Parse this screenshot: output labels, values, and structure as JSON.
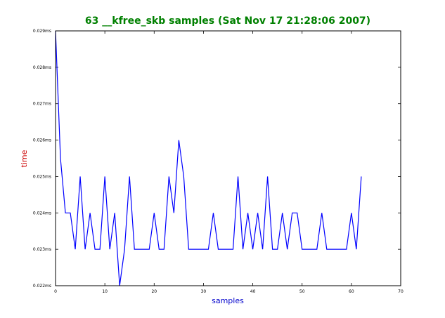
{
  "chart_data": {
    "type": "line",
    "title": "63 __kfree_skb samples (Sat Nov 17 21:28:06 2007)",
    "xlabel": "samples",
    "ylabel": "time",
    "xlim": [
      0,
      70
    ],
    "ylim": [
      0.022,
      0.029
    ],
    "xticks": [
      0,
      10,
      20,
      30,
      40,
      50,
      60,
      70
    ],
    "xtick_labels": [
      "0",
      "10",
      "20",
      "30",
      "40",
      "50",
      "60",
      "70"
    ],
    "yticks": [
      0.022,
      0.023,
      0.024,
      0.025,
      0.026,
      0.027,
      0.028,
      0.029
    ],
    "ytick_labels": [
      "0.022ms",
      "0.023ms",
      "0.024ms",
      "0.025ms",
      "0.026ms",
      "0.027ms",
      "0.028ms",
      "0.029ms"
    ],
    "grid": false,
    "colors": {
      "title": "#008000",
      "xlabel": "#0000cc",
      "ylabel": "#cc0000",
      "line": "#0000ff",
      "axes": "#000000"
    },
    "series": [
      {
        "x": [
          0,
          1,
          2,
          3,
          4,
          5,
          6,
          7,
          8,
          9,
          10,
          11,
          12,
          13,
          14,
          15,
          16,
          17,
          18,
          19,
          20,
          21,
          22,
          23,
          24,
          25,
          26,
          27,
          28,
          29,
          30,
          31,
          32,
          33,
          34,
          35,
          36,
          37,
          38,
          39,
          40,
          41,
          42,
          43,
          44,
          45,
          46,
          47,
          48,
          49,
          50,
          51,
          52,
          53,
          54,
          55,
          56,
          57,
          58,
          59,
          60,
          61,
          62
        ],
        "values": [
          0.029,
          0.0255,
          0.024,
          0.024,
          0.023,
          0.025,
          0.023,
          0.024,
          0.023,
          0.023,
          0.025,
          0.023,
          0.024,
          0.022,
          0.023,
          0.025,
          0.023,
          0.023,
          0.023,
          0.023,
          0.024,
          0.023,
          0.023,
          0.025,
          0.024,
          0.026,
          0.025,
          0.023,
          0.023,
          0.023,
          0.023,
          0.023,
          0.024,
          0.023,
          0.023,
          0.023,
          0.023,
          0.025,
          0.023,
          0.024,
          0.023,
          0.024,
          0.023,
          0.025,
          0.023,
          0.023,
          0.024,
          0.023,
          0.024,
          0.024,
          0.023,
          0.023,
          0.023,
          0.023,
          0.024,
          0.023,
          0.023,
          0.023,
          0.023,
          0.023,
          0.024,
          0.023,
          0.025
        ]
      }
    ]
  }
}
